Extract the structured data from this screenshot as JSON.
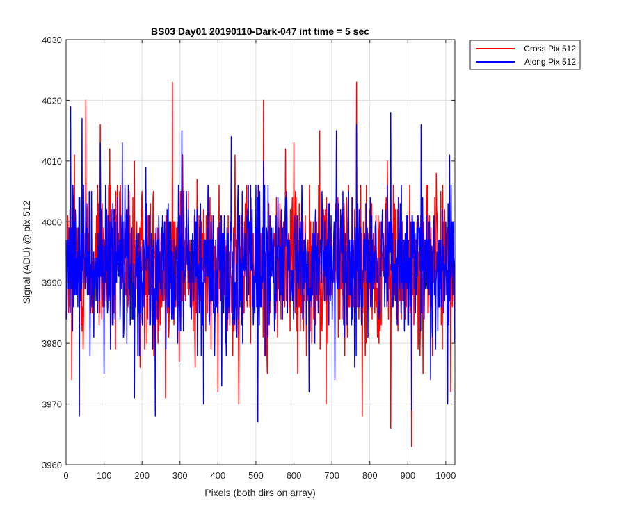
{
  "chart_data": {
    "type": "line",
    "title": "BS03 Day01 20190110-Dark-047 int time = 5 sec",
    "xlabel": "Pixels (both dirs on array)",
    "ylabel": "Signal (ADU) @ pix 512",
    "xlim": [
      0,
      1024
    ],
    "ylim": [
      3960,
      4030
    ],
    "xticks": [
      0,
      100,
      200,
      300,
      400,
      500,
      600,
      700,
      800,
      900,
      1000
    ],
    "yticks": [
      3960,
      3970,
      3980,
      3990,
      4000,
      4010,
      4020,
      4030
    ],
    "grid": true,
    "legend_position": "outside-top-right",
    "noise_mean": 3993,
    "series": [
      {
        "name": "Cross Pix 512",
        "color": "#ff0000",
        "n_points": 1024,
        "mean": 3993,
        "approx_std": 6.5,
        "peaks": [
          [
            22,
            4011
          ],
          [
            52,
            4020
          ],
          [
            90,
            4016
          ],
          [
            115,
            4012
          ],
          [
            180,
            4010
          ],
          [
            280,
            4023
          ],
          [
            307,
            4011
          ],
          [
            345,
            4007
          ],
          [
            400,
            4010
          ],
          [
            445,
            4011
          ],
          [
            520,
            4020
          ],
          [
            578,
            4012
          ],
          [
            600,
            4013
          ],
          [
            668,
            4015
          ],
          [
            765,
            4023
          ],
          [
            846,
            4010
          ],
          [
            910,
            4009
          ],
          [
            975,
            4008
          ]
        ],
        "troughs": [
          [
            15,
            3974
          ],
          [
            45,
            3979
          ],
          [
            130,
            3979
          ],
          [
            195,
            3976
          ],
          [
            262,
            3971
          ],
          [
            298,
            3977
          ],
          [
            340,
            3976
          ],
          [
            400,
            3972
          ],
          [
            455,
            3970
          ],
          [
            530,
            3975
          ],
          [
            610,
            3975
          ],
          [
            685,
            3970
          ],
          [
            780,
            3968
          ],
          [
            855,
            3966
          ],
          [
            910,
            3963
          ],
          [
            940,
            3975
          ],
          [
            1013,
            3972
          ]
        ]
      },
      {
        "name": "Along Pix 512",
        "color": "#0000ff",
        "n_points": 1024,
        "mean": 3993,
        "approx_std": 6.0,
        "peaks": [
          [
            12,
            4019
          ],
          [
            42,
            4017
          ],
          [
            90,
            4013
          ],
          [
            148,
            4013
          ],
          [
            210,
            4009
          ],
          [
            305,
            4015
          ],
          [
            435,
            4014
          ],
          [
            520,
            4010
          ],
          [
            640,
            4022
          ],
          [
            712,
            4015
          ],
          [
            765,
            4016
          ],
          [
            855,
            4018
          ],
          [
            935,
            4016
          ],
          [
            1010,
            4011
          ]
        ],
        "troughs": [
          [
            35,
            3968
          ],
          [
            100,
            3975
          ],
          [
            180,
            3971
          ],
          [
            235,
            3968
          ],
          [
            362,
            3970
          ],
          [
            410,
            3973
          ],
          [
            505,
            3967
          ],
          [
            640,
            3972
          ],
          [
            708,
            3974
          ],
          [
            760,
            3976
          ],
          [
            910,
            3969
          ],
          [
            960,
            3974
          ],
          [
            1005,
            3970
          ]
        ]
      }
    ]
  }
}
